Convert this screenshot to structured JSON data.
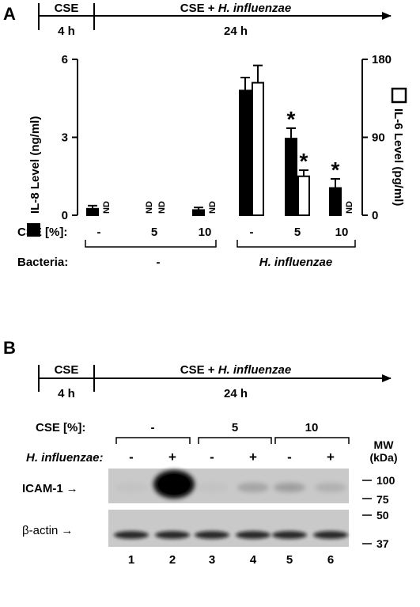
{
  "panel_a": {
    "label": "A",
    "timeline": {
      "seg1_top": "CSE",
      "seg1_bottom": "4 h",
      "seg2_top_plain": "CSE + ",
      "seg2_top_italic": "H. influenzae",
      "seg2_bottom": "24 h"
    },
    "left_axis_label": "IL-8 Level (ng/ml)",
    "right_axis_label": "IL-6 Level (pg/ml)",
    "left_ticks": [
      "0",
      "3",
      "6"
    ],
    "right_ticks": [
      "0",
      "90",
      "180"
    ],
    "nd": "ND",
    "star": "*",
    "cse_row_label": "CSE [%]:",
    "cse_values": [
      "-",
      "5",
      "10",
      "-",
      "5",
      "10"
    ],
    "bacteria_row_label": "Bacteria:",
    "bacteria_values": [
      "-",
      "H. influenzae"
    ]
  },
  "chart_data": {
    "type": "bar",
    "categories": [
      "-",
      "5",
      "10",
      "-",
      "5",
      "10"
    ],
    "groups": [
      "-",
      "-",
      "-",
      "H. influenzae",
      "H. influenzae",
      "H. influenzae"
    ],
    "series": [
      {
        "name": "IL-8 Level (ng/ml)",
        "axis": "left",
        "color": "#000000",
        "values": [
          0.25,
          null,
          0.2,
          4.8,
          2.95,
          1.05
        ],
        "errors": [
          0.12,
          null,
          0.1,
          0.5,
          0.4,
          0.35
        ],
        "nd": [
          false,
          true,
          false,
          false,
          false,
          false
        ],
        "significant": [
          false,
          false,
          false,
          false,
          true,
          true
        ]
      },
      {
        "name": "IL-6 Level (pg/ml)",
        "axis": "right",
        "color": "#ffffff",
        "values": [
          null,
          null,
          null,
          153,
          45,
          null
        ],
        "errors": [
          null,
          null,
          null,
          20,
          7,
          null
        ],
        "nd": [
          true,
          true,
          true,
          false,
          false,
          true
        ],
        "significant": [
          false,
          false,
          false,
          false,
          true,
          false
        ]
      }
    ],
    "ylim_left": [
      0,
      6
    ],
    "ylim_right": [
      0,
      180
    ]
  },
  "panel_b": {
    "label": "B",
    "timeline": {
      "seg1_top": "CSE",
      "seg1_bottom": "4 h",
      "seg2_top_plain": "CSE + ",
      "seg2_top_italic": "H. influenzae",
      "seg2_bottom": "24 h"
    },
    "cse_row_label": "CSE [%]:",
    "cse_values": [
      "-",
      "5",
      "10"
    ],
    "hi_row_label": "H. influenzae:",
    "hi_values": [
      "-",
      "+",
      "-",
      "+",
      "-",
      "+"
    ],
    "mw_label": "MW",
    "kda_label": "(kDa)",
    "mw_markers": [
      "100",
      "75",
      "50",
      "37"
    ],
    "row1_label": "ICAM-1",
    "row2_label": "β-actin",
    "arrow": "→",
    "lanes": [
      "1",
      "2",
      "3",
      "4",
      "5",
      "6"
    ],
    "icam_intensity": [
      0.05,
      1.0,
      0.05,
      0.3,
      0.35,
      0.2
    ],
    "actin_intensity": [
      0.85,
      0.85,
      0.85,
      0.85,
      0.85,
      0.85
    ]
  }
}
